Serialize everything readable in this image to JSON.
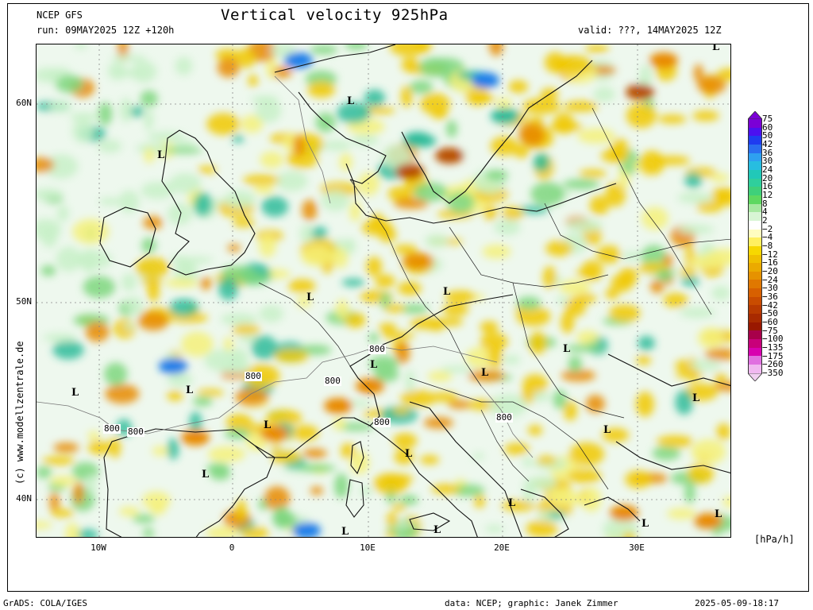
{
  "header": {
    "model": "NCEP GFS",
    "title": "Vertical velocity 925hPa",
    "run": "run: 09MAY2025 12Z +120h",
    "valid": "valid: ???, 14MAY2025 12Z"
  },
  "map": {
    "lat_labels": [
      "60N",
      "50N",
      "40N"
    ],
    "lon_labels": [
      "10W",
      "0",
      "10E",
      "20E",
      "30E"
    ],
    "low_marker": "L",
    "contour_label": "800",
    "colors": {
      "rise_light": "#c8f0c8",
      "rise_mid": "#7ed67e",
      "rise_strong": "#2dbb9a",
      "rise_max": "#1e7ee8",
      "sink_light": "#f5f07a",
      "sink_mid": "#f0c800",
      "sink_strong": "#e88a00",
      "sink_max": "#b85000"
    }
  },
  "colorbar": {
    "unit": "[hPa/h]",
    "labels": [
      "75",
      "60",
      "50",
      "42",
      "36",
      "30",
      "24",
      "20",
      "16",
      "12",
      "8",
      "4",
      "2",
      "−2",
      "−4",
      "−8",
      "−12",
      "−16",
      "−20",
      "−24",
      "−30",
      "−36",
      "−42",
      "−50",
      "−60",
      "−75",
      "−100",
      "−135",
      "−175",
      "−260",
      "−350"
    ],
    "colors": [
      "#7b00d6",
      "#4b10f0",
      "#1f3cf0",
      "#2a6ef0",
      "#2ea0f0",
      "#27bde0",
      "#21c8b8",
      "#2fcf9c",
      "#3fd07a",
      "#5ed860",
      "#a7e8a0",
      "#d8f5d4",
      "#ffffff",
      "#fffdc0",
      "#fff060",
      "#f7d800",
      "#f0c000",
      "#ebaa00",
      "#e69200",
      "#e07800",
      "#d76000",
      "#c94c00",
      "#b83a00",
      "#a82a00",
      "#991800",
      "#a8004a",
      "#c8007a",
      "#d800b0",
      "#e070e0",
      "#f0b8f0"
    ]
  },
  "footer": {
    "left": "GrADS: COLA/IGES",
    "credit": "data: NCEP; graphic: Janek Zimmer",
    "timestamp": "2025-05-09-18:17"
  },
  "watermark": "(c) www.modellzentrale.de"
}
